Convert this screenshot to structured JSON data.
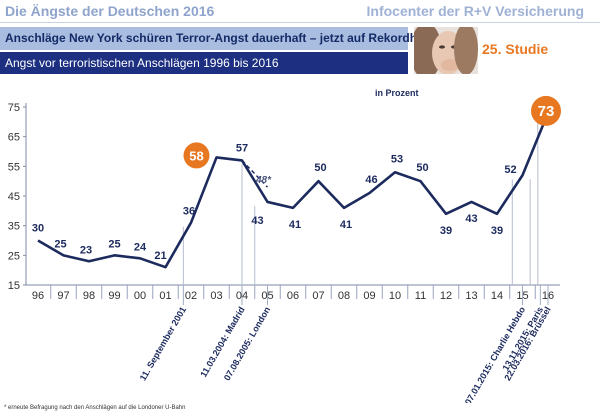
{
  "header": {
    "title": "Die Ängste der Deutschen 2016",
    "brand": "Infocenter der R+V Versicherung",
    "headline": "Anschläge New York schüren Terror-Angst dauerhaft – jetzt auf Rekordhoch",
    "subtitle": "Angst vor terroristischen Anschlägen 1996 bis 2016",
    "study": "25. Studie"
  },
  "footnote": "* erneute Befragung nach den Anschlägen auf die Londoner U-Bahn",
  "chart_data": {
    "type": "line",
    "unit_label": "in Prozent",
    "categories": [
      "96",
      "97",
      "98",
      "99",
      "00",
      "01",
      "02",
      "03",
      "04",
      "05",
      "06",
      "07",
      "08",
      "09",
      "10",
      "11",
      "12",
      "13",
      "14",
      "15",
      "16"
    ],
    "values": [
      30,
      25,
      23,
      25,
      24,
      21,
      36,
      58,
      57,
      43,
      41,
      50,
      41,
      46,
      53,
      50,
      39,
      43,
      39,
      52,
      73
    ],
    "ylim": [
      15,
      75
    ],
    "yticks": [
      15,
      25,
      35,
      45,
      55,
      65,
      75
    ],
    "value_labels": [
      "30",
      "25",
      "23",
      "25",
      "24",
      "21",
      "36",
      "58",
      "57",
      "43",
      "41",
      "50",
      "41",
      "46",
      "53",
      "50",
      "39",
      "43",
      "39",
      "52",
      "73"
    ],
    "highlighted": [
      "58",
      "73"
    ],
    "accent_color": "#e87722",
    "line_color": "#1c2a5e",
    "extra_point": {
      "x": "05",
      "value": 48,
      "label": "48*",
      "from_x": "04"
    },
    "events": [
      {
        "label": "11. September 2001",
        "x": "01.7",
        "anchor": "01.7"
      },
      {
        "label": "11.03.2004: Madrid",
        "x": "04",
        "anchor": "04"
      },
      {
        "label": "07.08.2005: London",
        "x": "05",
        "anchor": "04.5"
      },
      {
        "label": "07.01.2015: Charlie Hebdo",
        "x": "15",
        "anchor": "14.6"
      },
      {
        "label": "13.11.2015: Paris",
        "x": "15.7",
        "anchor": "15.3"
      },
      {
        "label": "22.03.2016: Brüssel",
        "x": "16",
        "anchor": "15.6"
      }
    ],
    "grid": false
  }
}
